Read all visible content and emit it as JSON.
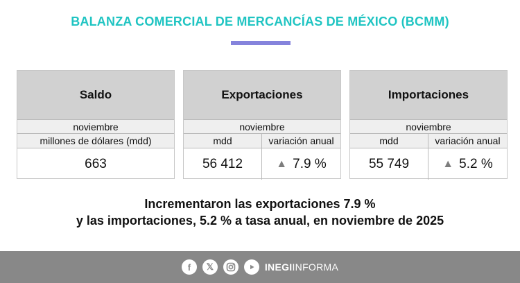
{
  "title": "BALANZA COMERCIAL DE MERCANCÍAS DE MÉXICO (BCMM)",
  "cards": {
    "saldo": {
      "heading": "Saldo",
      "period": "noviembre",
      "sub_label": "millones de dólares (mdd)",
      "value": "663"
    },
    "exportaciones": {
      "heading": "Exportaciones",
      "period": "noviembre",
      "sub_label_1": "mdd",
      "sub_label_2": "variación anual",
      "value": "56 412",
      "variation": "7.9 %"
    },
    "importaciones": {
      "heading": "Importaciones",
      "period": "noviembre",
      "sub_label_1": "mdd",
      "sub_label_2": "variación anual",
      "value": "55 749",
      "variation": "5.2 %"
    }
  },
  "headline": {
    "line1": "Incrementaron las exportaciones 7.9 %",
    "line2": "y las importaciones, 5.2 % a tasa anual, en noviembre de 2025"
  },
  "footer": {
    "icons": [
      "facebook-icon",
      "x-icon",
      "instagram-icon",
      "youtube-icon"
    ],
    "brand_bold": "INEGI",
    "brand_light": "INFORMA"
  },
  "colors": {
    "title": "#1fc4c2",
    "underline": "#8583dc",
    "header_bg": "#d1d1d1",
    "footer_bg": "#888888"
  }
}
